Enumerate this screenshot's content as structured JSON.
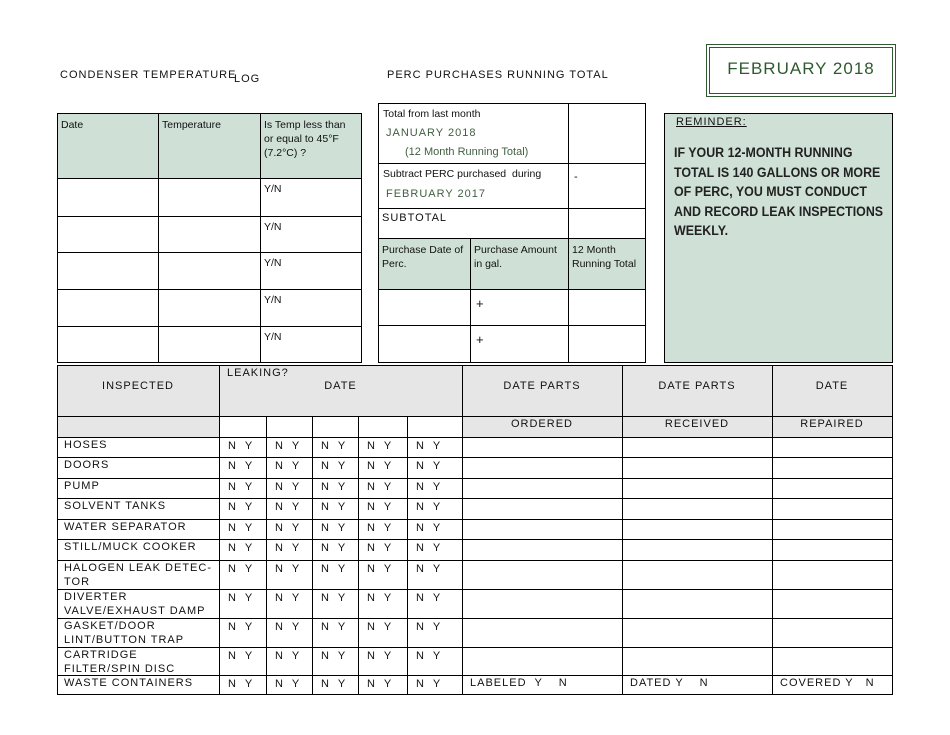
{
  "header": {
    "condenser_title": "CONDENSER TEMPERATURE",
    "condenser_log": "LOG",
    "perc_title": "PERC PURCHASES RUNNING TOTAL",
    "month": "FEBRUARY 2018"
  },
  "temp_table": {
    "headers": [
      "Date",
      "Temperature",
      "Is Temp less than or equal to 45°F (7.2°C) ?"
    ],
    "rows": [
      "Y/N",
      "Y/N",
      "Y/N",
      "Y/N",
      "Y/N"
    ]
  },
  "perc_table": {
    "total_label": "Total from last month",
    "total_month": "JANUARY 2018",
    "total_note": "(12 Month Running Total)",
    "subtract_label": "Subtract PERC purchased  during",
    "subtract_month": "FEBRUARY 2017",
    "subtract_sign": "-",
    "subtotal": "SUBTOTAL",
    "headers": [
      "Purchase Date of Perc.",
      "Purchase Amount in gal.",
      "12 Month Running Total"
    ],
    "rows": [
      "+",
      "+"
    ]
  },
  "reminder": {
    "label": "REMINDER:",
    "text": "IF YOUR 12-MONTH RUNNING TOTAL IS 140 GALLONS OR MORE OF PERC, YOU MUST CONDUCT AND RECORD LEAK INSPECTIONS WEEKLY."
  },
  "inspection": {
    "headers": {
      "inspected": "INSPECTED",
      "leaking": "LEAKING?",
      "date": "DATE",
      "parts_ordered": "DATE PARTS",
      "parts_received": "DATE PARTS",
      "repaired": "DATE"
    },
    "subheaders": [
      "ORDERED",
      "RECEIVED",
      "REPAIRED"
    ],
    "rows": [
      {
        "item": "HOSES",
        "leaking": [
          "N   Y",
          "N   Y",
          "N   Y",
          "N   Y",
          "N   Y"
        ]
      },
      {
        "item": "DOORS",
        "leaking": [
          "N   Y",
          "N   Y",
          "N   Y",
          "N   Y",
          "N   Y"
        ]
      },
      {
        "item": "PUMP",
        "leaking": [
          "N   Y",
          "N   Y",
          "N   Y",
          "N   Y",
          "N   Y"
        ]
      },
      {
        "item": "SOLVENT TANKS",
        "leaking": [
          "N   Y",
          "N   Y",
          "N   Y",
          "N   Y",
          "N   Y"
        ]
      },
      {
        "item": "WATER SEPARATOR",
        "leaking": [
          "N   Y",
          "N   Y",
          "N   Y",
          "N   Y",
          "N   Y"
        ]
      },
      {
        "item": "STILL/MUCK COOKER",
        "leaking": [
          "N   Y",
          "N   Y",
          "N   Y",
          "N   Y",
          "N   Y"
        ]
      },
      {
        "item": "HALOGEN LEAK DETEC-TOR",
        "leaking": [
          "N   Y",
          "N   Y",
          "N   Y",
          "N   Y",
          "N   Y"
        ]
      },
      {
        "item": "DIVERTER VALVE/EXHAUST DAMP",
        "leaking": [
          "N   Y",
          "N   Y",
          "N   Y",
          "N   Y",
          "N   Y"
        ]
      },
      {
        "item": "GASKET/DOOR LINT/BUTTON TRAP",
        "leaking": [
          "N   Y",
          "N   Y",
          "N   Y",
          "N   Y",
          "N   Y"
        ]
      },
      {
        "item": "CARTRIDGE FILTER/SPIN DISC",
        "leaking": [
          "N   Y",
          "N   Y",
          "N   Y",
          "N   Y",
          "N   Y"
        ]
      },
      {
        "item": "WASTE CONTAINERS",
        "leaking": [
          "N   Y",
          "N   Y",
          "N   Y",
          "N   Y",
          "N   Y"
        ],
        "extra": [
          "LABELED  Y    N",
          "DATED Y    N",
          "COVERED Y   N"
        ]
      }
    ]
  }
}
